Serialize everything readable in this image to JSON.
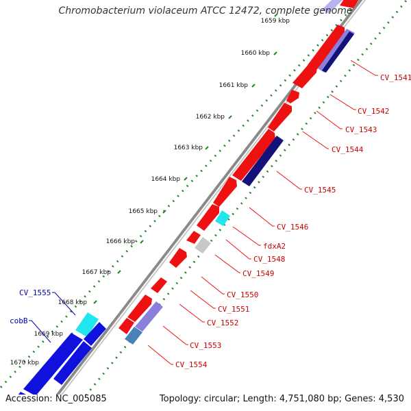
{
  "title": "Chromobacterium violaceum ATCC 12472, complete genome",
  "accession": "Accession: NC_005085",
  "topology": "Topology: circular; Length: 4,751,080 bp; Genes: 4,530",
  "colors": {
    "red": "#ee1111",
    "blue": "#1111dd",
    "navy": "#12127a",
    "lavender": "#8a7fdc",
    "cyan": "#22e6ee",
    "steel": "#4a82b8",
    "gray": "#c8c8c8",
    "backbone": "#8a8a8a",
    "dots": "#228822",
    "label_red": "#cc0000",
    "label_blue": "#0000aa"
  },
  "ticks": [
    "1659 kbp",
    "1660 kbp",
    "1661 kbp",
    "1662 kbp",
    "1663 kbp",
    "1664 kbp",
    "1665 kbp",
    "1666 kbp",
    "1667 kbp",
    "1668 kbp",
    "1669 kbp",
    "1670 kbp"
  ],
  "gene_labels": [
    {
      "text": "CV_1541",
      "strand": "red"
    },
    {
      "text": "CV_1542",
      "strand": "red"
    },
    {
      "text": "CV_1543",
      "strand": "red"
    },
    {
      "text": "CV_1544",
      "strand": "red"
    },
    {
      "text": "CV_1545",
      "strand": "red"
    },
    {
      "text": "CV_1546",
      "strand": "red"
    },
    {
      "text": "fdxA2",
      "strand": "red"
    },
    {
      "text": "CV_1548",
      "strand": "red"
    },
    {
      "text": "CV_1549",
      "strand": "red"
    },
    {
      "text": "CV_1550",
      "strand": "red"
    },
    {
      "text": "CV_1551",
      "strand": "red"
    },
    {
      "text": "CV_1552",
      "strand": "red"
    },
    {
      "text": "CV_1553",
      "strand": "red"
    },
    {
      "text": "CV_1554",
      "strand": "red"
    },
    {
      "text": "CV_1555",
      "strand": "blue"
    },
    {
      "text": "cobB",
      "strand": "blue"
    }
  ]
}
